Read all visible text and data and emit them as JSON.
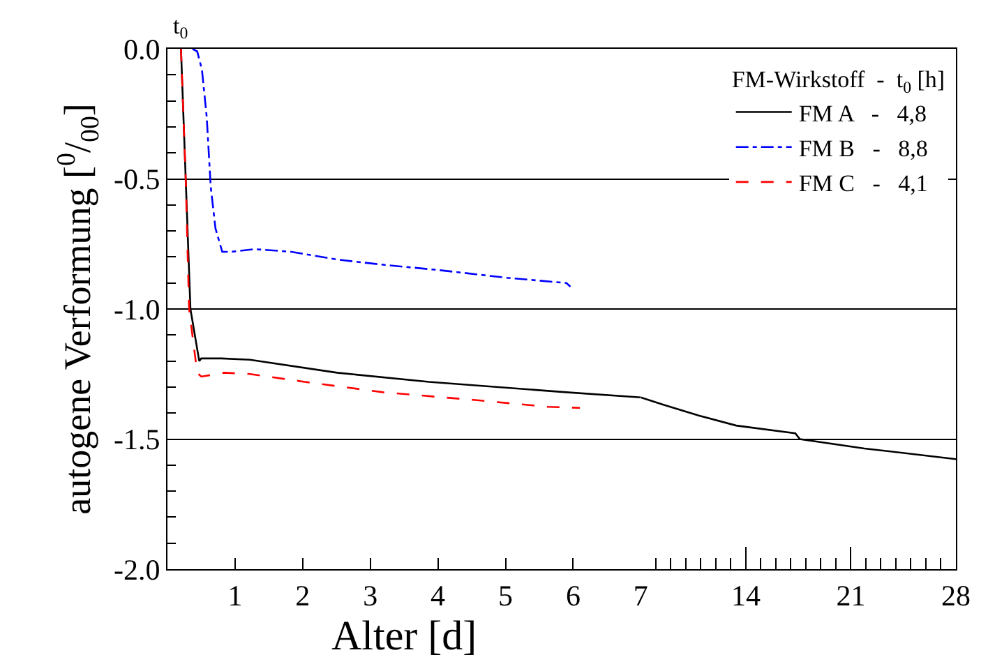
{
  "chart_data": [
    {
      "type": "line",
      "xlabel": "Alter [d]",
      "ylabel": "autogene Verformung [$^{0}$/$_{00}$]",
      "legend_title": "FM-Wirkstoff  -  t$_{0}$ [h]",
      "legend": "top right",
      "grid": "y",
      "marker": "none",
      "xlim": [
        0,
        7
      ],
      "xticks": [
        1,
        2,
        3,
        4,
        5,
        6,
        7
      ],
      "ylim": [
        -2.0,
        0.0
      ],
      "yticks": [
        {
          "value": 0.0,
          "label": "0.0"
        },
        {
          "value": -0.1,
          "label": null
        },
        {
          "value": -0.2,
          "label": null
        },
        {
          "value": -0.3,
          "label": null
        },
        {
          "value": -0.4,
          "label": null
        },
        -0.5,
        {
          "value": -0.6,
          "label": null
        },
        {
          "value": -0.7,
          "label": null
        },
        {
          "value": -0.8,
          "label": null
        },
        {
          "value": -0.9,
          "label": null
        },
        {
          "value": -1.0,
          "label": "-1.0"
        },
        {
          "value": -1.1,
          "label": null
        },
        {
          "value": -1.2,
          "label": null
        },
        {
          "value": -1.3,
          "label": null
        },
        {
          "value": -1.4,
          "label": null
        },
        -1.5,
        {
          "value": -1.6,
          "label": null
        },
        {
          "value": -1.7,
          "label": null
        },
        {
          "value": -1.8,
          "label": null
        },
        {
          "value": -1.9,
          "label": null
        },
        {
          "value": -2.0,
          "label": "-2.0"
        }
      ],
      "annotations": [
        {
          "text": "t$_{0}$",
          "x": 0.2,
          "y": 0.0
        }
      ],
      "series": [
        {
          "name": "FM A   -   4,8",
          "color": "#000000",
          "line_style": "solid",
          "x": [
            0.2,
            0.27,
            0.34,
            0.47,
            0.5,
            0.8,
            1.22,
            2.51,
            3.87,
            5.9,
            7.0
          ],
          "values": [
            0.0,
            -0.5,
            -1.0,
            -1.2,
            -1.19,
            -1.19,
            -1.195,
            -1.245,
            -1.28,
            -1.32,
            -1.34
          ]
        },
        {
          "name": "FM B   -   8,8",
          "color": "#0000ff",
          "line_style": "dashdot",
          "x": [
            0.37,
            0.44,
            0.51,
            0.58,
            0.64,
            0.71,
            0.81,
            0.95,
            1.29,
            1.83,
            2.51,
            3.19,
            4.0,
            5.02,
            5.9,
            5.96
          ],
          "values": [
            0.0,
            -0.01,
            -0.08,
            -0.26,
            -0.53,
            -0.69,
            -0.78,
            -0.78,
            -0.77,
            -0.78,
            -0.81,
            -0.83,
            -0.85,
            -0.88,
            -0.9,
            -0.914
          ]
        },
        {
          "name": "FM C   -   4,1",
          "color": "#ff0000",
          "line_style": "dashed",
          "x": [
            0.2,
            0.27,
            0.32,
            0.44,
            0.5,
            0.84,
            1.22,
            2.03,
            3.19,
            4.55,
            5.63,
            6.1
          ],
          "values": [
            0.0,
            -0.5,
            -1.0,
            -1.245,
            -1.26,
            -1.245,
            -1.25,
            -1.28,
            -1.32,
            -1.35,
            -1.376,
            -1.38
          ]
        }
      ]
    },
    {
      "type": "line",
      "grid": "y",
      "tick_labels": "x",
      "xlim": [
        7,
        28
      ],
      "xticks": [
        {
          "value": 8,
          "label": null
        },
        {
          "value": 9,
          "label": null
        },
        {
          "value": 10,
          "label": null
        },
        {
          "value": 11,
          "label": null
        },
        {
          "value": 12,
          "label": null
        },
        {
          "value": 13,
          "label": null
        },
        14,
        {
          "value": 15,
          "label": null
        },
        {
          "value": 16,
          "label": null
        },
        {
          "value": 17,
          "label": null
        },
        {
          "value": 18,
          "label": null
        },
        {
          "value": 19,
          "label": null
        },
        {
          "value": 20,
          "label": null
        },
        21,
        {
          "value": 22,
          "label": null
        },
        {
          "value": 23,
          "label": null
        },
        {
          "value": 24,
          "label": null
        },
        {
          "value": 25,
          "label": null
        },
        {
          "value": 26,
          "label": null
        },
        {
          "value": 27,
          "label": null
        },
        28
      ],
      "ylim": [
        -2.0,
        0.0
      ],
      "yticks": [
        -0.5,
        -1.0,
        -1.5
      ],
      "series": [
        {
          "color": "#000000",
          "line_style": "solid",
          "x": [
            7.0,
            8.47,
            10.9,
            13.36,
            17.3,
            17.6,
            21.9,
            28.0
          ],
          "values": [
            -1.34,
            -1.367,
            -1.41,
            -1.448,
            -1.478,
            -1.5,
            -1.536,
            -1.577
          ]
        }
      ]
    }
  ]
}
